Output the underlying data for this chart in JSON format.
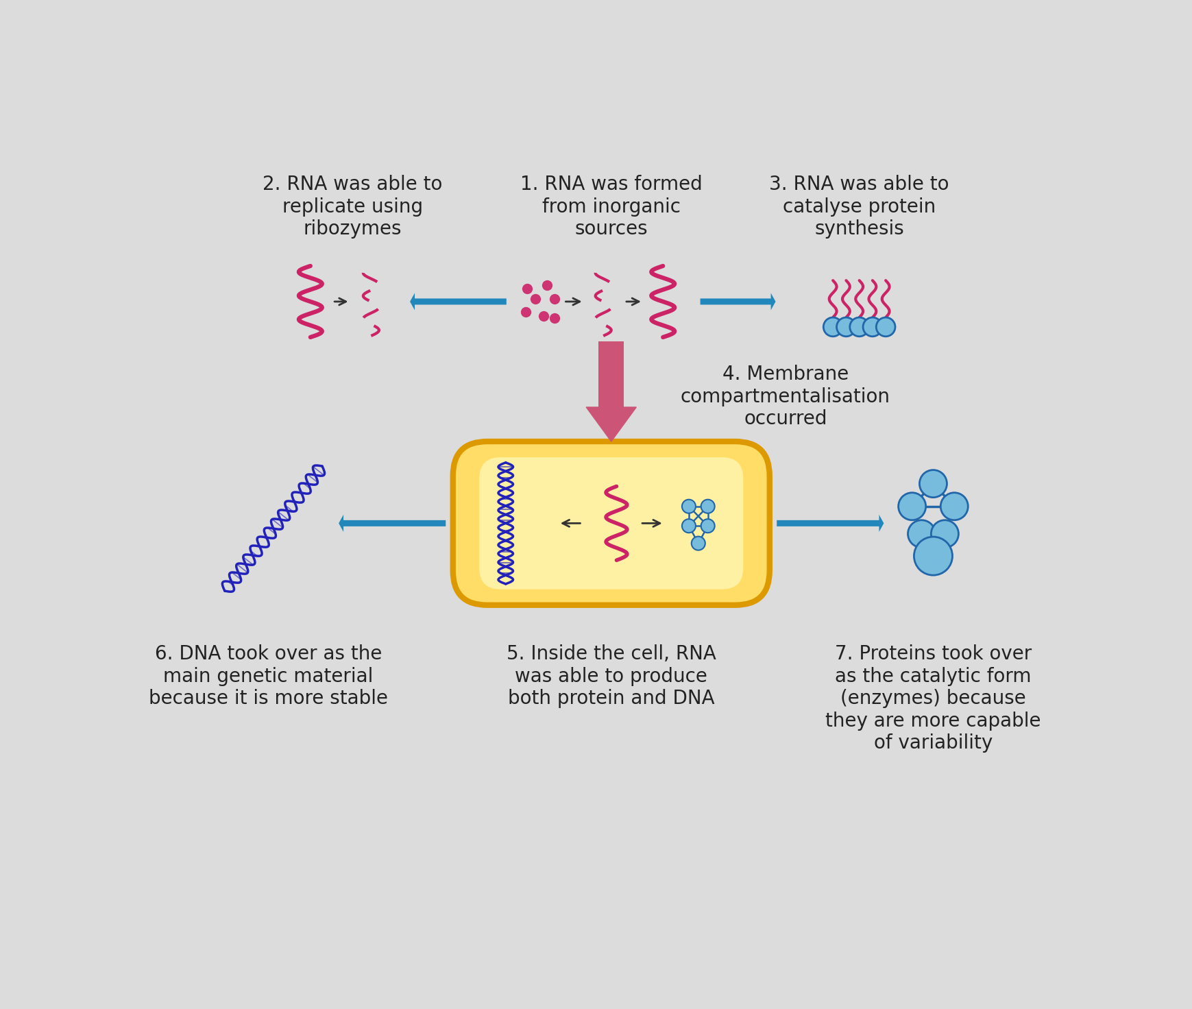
{
  "bg_color": "#dcdcdc",
  "text_color": "#222222",
  "rna_color": "#cc2266",
  "dna_color": "#2222bb",
  "blue_arrow_color": "#2288bb",
  "pink_arrow_color": "#cc5577",
  "cell_border_color": "#dd9900",
  "cell_fill_outer": "#ffdd66",
  "cell_fill_inner": "#ffffcc",
  "node_color": "#77bbdd",
  "node_edge_color": "#2266aa",
  "label1": "1. RNA was formed\nfrom inorganic\nsources",
  "label2": "2. RNA was able to\nreplicate using\nribozymes",
  "label3": "3. RNA was able to\ncatalyse protein\nsynthesis",
  "label4": "4. Membrane\ncompartmentalisation\noccurred",
  "label5": "5. Inside the cell, RNA\nwas able to produce\nboth protein and DNA",
  "label6": "6. DNA took over as the\nmain genetic material\nbecause it is more stable",
  "label7": "7. Proteins took over\nas the catalytic form\n(enzymes) because\nthey are more capable\nof variability",
  "font_size_labels": 20,
  "fig_width": 17.4,
  "fig_height": 14.72
}
